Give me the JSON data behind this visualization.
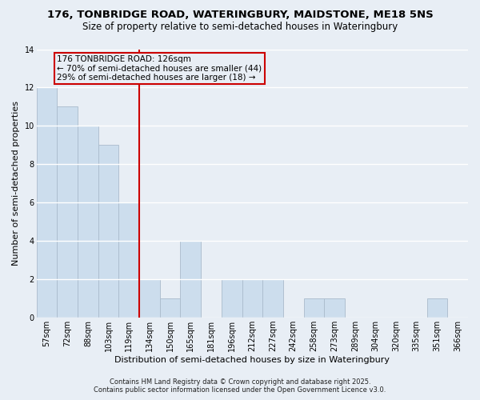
{
  "title_line1": "176, TONBRIDGE ROAD, WATERINGBURY, MAIDSTONE, ME18 5NS",
  "title_line2": "Size of property relative to semi-detached houses in Wateringbury",
  "xlabel": "Distribution of semi-detached houses by size in Wateringbury",
  "ylabel": "Number of semi-detached properties",
  "categories": [
    "57sqm",
    "72sqm",
    "88sqm",
    "103sqm",
    "119sqm",
    "134sqm",
    "150sqm",
    "165sqm",
    "181sqm",
    "196sqm",
    "212sqm",
    "227sqm",
    "242sqm",
    "258sqm",
    "273sqm",
    "289sqm",
    "304sqm",
    "320sqm",
    "335sqm",
    "351sqm",
    "366sqm"
  ],
  "values": [
    12,
    11,
    10,
    9,
    6,
    2,
    1,
    4,
    0,
    2,
    2,
    2,
    0,
    1,
    1,
    0,
    0,
    0,
    0,
    1,
    0
  ],
  "bar_color": "#ccdded",
  "bar_edgecolor": "#aabbcc",
  "vline_x_index": 4.5,
  "vline_color": "#cc0000",
  "annotation_title": "176 TONBRIDGE ROAD: 126sqm",
  "annotation_line2": "← 70% of semi-detached houses are smaller (44)",
  "annotation_line3": "29% of semi-detached houses are larger (18) →",
  "annotation_box_edgecolor": "#cc0000",
  "ylim": [
    0,
    14
  ],
  "yticks": [
    0,
    2,
    4,
    6,
    8,
    10,
    12,
    14
  ],
  "footer_line1": "Contains HM Land Registry data © Crown copyright and database right 2025.",
  "footer_line2": "Contains public sector information licensed under the Open Government Licence v3.0.",
  "bg_color": "#e8eef5",
  "plot_bg_color": "#e8eef5",
  "grid_color": "#ffffff",
  "title_fontsize": 9.5,
  "subtitle_fontsize": 8.5,
  "axis_label_fontsize": 8,
  "tick_fontsize": 7,
  "annotation_fontsize": 7.5,
  "footer_fontsize": 6,
  "ylabel_fontsize": 8
}
